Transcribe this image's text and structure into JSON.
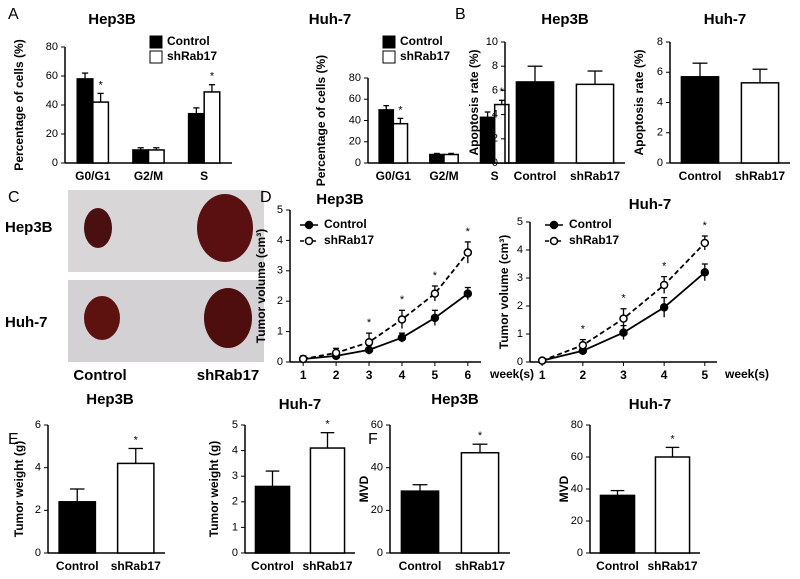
{
  "photo": {
    "panel": "C",
    "rows": [
      "Hep3B",
      "Huh-7"
    ],
    "columns": [
      "Control",
      "shRab17"
    ]
  },
  "chart_data": [
    {
      "type": "bar",
      "panel": "A",
      "title": "Hep3B",
      "ylabel": "Percentage of cells (%)",
      "categories": [
        "G0/G1",
        "G2/M",
        "S"
      ],
      "series": [
        {
          "name": "Control",
          "color": "#000000",
          "values": [
            58,
            9,
            34
          ],
          "errors": [
            4,
            1.5,
            4
          ]
        },
        {
          "name": "shRab17",
          "color": "#ffffff",
          "values": [
            42,
            9,
            49
          ],
          "errors": [
            6,
            1.5,
            5
          ]
        }
      ],
      "ylim": [
        0,
        80
      ],
      "yticks": [
        0,
        20,
        40,
        60,
        80
      ],
      "legend": "upper right",
      "annotations": [
        {
          "text": "*",
          "category": "G0/G1",
          "series": "shRab17"
        },
        {
          "text": "*",
          "category": "S",
          "series": "shRab17"
        }
      ]
    },
    {
      "type": "bar",
      "title": "Huh-7",
      "ylabel": "Percentage of cells (%)",
      "categories": [
        "G0/G1",
        "G2/M",
        "S"
      ],
      "series": [
        {
          "name": "Control",
          "color": "#000000",
          "values": [
            50,
            8,
            43
          ],
          "errors": [
            4,
            1,
            5
          ]
        },
        {
          "name": "shRab17",
          "color": "#ffffff",
          "values": [
            37,
            8,
            55
          ],
          "errors": [
            5,
            1,
            4
          ]
        }
      ],
      "ylim": [
        0,
        80
      ],
      "yticks": [
        0,
        20,
        40,
        60,
        80
      ],
      "legend": "upper right",
      "annotations": [
        {
          "text": "*",
          "category": "G0/G1",
          "series": "shRab17"
        },
        {
          "text": "*",
          "category": "S",
          "series": "shRab17"
        }
      ]
    },
    {
      "type": "bar",
      "panel": "B",
      "title": "Hep3B",
      "ylabel": "Apoptosis rate (%)",
      "categories": [
        "Control",
        "shRab17"
      ],
      "values": [
        6.7,
        6.5
      ],
      "errors": [
        1.3,
        1.1
      ],
      "colors": [
        "#000000",
        "#ffffff"
      ],
      "ylim": [
        0,
        10
      ],
      "yticks": [
        0,
        2,
        4,
        6,
        8,
        10
      ]
    },
    {
      "type": "bar",
      "title": "Huh-7",
      "ylabel": "Apoptosis rate (%)",
      "categories": [
        "Control",
        "shRab17"
      ],
      "values": [
        5.7,
        5.3
      ],
      "errors": [
        0.9,
        0.9
      ],
      "colors": [
        "#000000",
        "#ffffff"
      ],
      "ylim": [
        0,
        8
      ],
      "yticks": [
        0,
        2,
        4,
        6,
        8
      ]
    },
    {
      "type": "line",
      "panel": "D",
      "title": "Hep3B",
      "ylabel": "Tumor volume (cm³)",
      "xlabel": "week(s)",
      "x": [
        1,
        2,
        3,
        4,
        5,
        6
      ],
      "series": [
        {
          "name": "Control",
          "color": "#000000",
          "marker": "filled",
          "dash": false,
          "values": [
            0.1,
            0.2,
            0.4,
            0.8,
            1.45,
            2.25
          ],
          "errors": [
            0.1,
            0.1,
            0.15,
            0.15,
            0.25,
            0.2
          ]
        },
        {
          "name": "shRab17",
          "color": "#000000",
          "marker": "open",
          "dash": true,
          "values": [
            0.1,
            0.3,
            0.65,
            1.4,
            2.25,
            3.6
          ],
          "errors": [
            0.1,
            0.15,
            0.3,
            0.3,
            0.25,
            0.35
          ]
        }
      ],
      "xlim": [
        0.6,
        6.4
      ],
      "xticks": [
        1,
        2,
        3,
        4,
        5,
        6
      ],
      "ylim": [
        0,
        5
      ],
      "yticks": [
        0,
        1,
        2,
        3,
        4,
        5
      ],
      "legend": "upper left",
      "annotations": [
        {
          "text": "*",
          "x": 3
        },
        {
          "text": "*",
          "x": 4
        },
        {
          "text": "*",
          "x": 5
        },
        {
          "text": "*",
          "x": 6
        }
      ]
    },
    {
      "type": "line",
      "title": "Huh-7",
      "ylabel": "Tumor volume (cm³)",
      "xlabel": "week(s)",
      "x": [
        1,
        2,
        3,
        4,
        5
      ],
      "series": [
        {
          "name": "Control",
          "color": "#000000",
          "marker": "filled",
          "dash": false,
          "values": [
            0.05,
            0.4,
            1.05,
            1.95,
            3.2
          ],
          "errors": [
            0.05,
            0.15,
            0.25,
            0.35,
            0.3
          ]
        },
        {
          "name": "shRab17",
          "color": "#000000",
          "marker": "open",
          "dash": true,
          "values": [
            0.05,
            0.6,
            1.55,
            2.75,
            4.25
          ],
          "errors": [
            0.05,
            0.2,
            0.35,
            0.3,
            0.25
          ]
        }
      ],
      "xlim": [
        0.7,
        5.3
      ],
      "xticks": [
        1,
        2,
        3,
        4,
        5
      ],
      "ylim": [
        0,
        5
      ],
      "yticks": [
        0,
        1,
        2,
        3,
        4,
        5
      ],
      "legend": "upper left",
      "annotations": [
        {
          "text": "*",
          "x": 2
        },
        {
          "text": "*",
          "x": 3
        },
        {
          "text": "*",
          "x": 4
        },
        {
          "text": "*",
          "x": 5
        }
      ]
    },
    {
      "type": "bar",
      "panel": "E",
      "title": "Hep3B",
      "ylabel": "Tumor weight (g)",
      "categories": [
        "Control",
        "shRab17"
      ],
      "values": [
        2.4,
        4.2
      ],
      "errors": [
        0.6,
        0.7
      ],
      "colors": [
        "#000000",
        "#ffffff"
      ],
      "ylim": [
        0,
        6
      ],
      "yticks": [
        0,
        2,
        4,
        6
      ],
      "annotations": [
        {
          "text": "*",
          "category": "shRab17"
        }
      ]
    },
    {
      "type": "bar",
      "title": "Huh-7",
      "ylabel": "Tumor weight (g)",
      "categories": [
        "Control",
        "shRab17"
      ],
      "values": [
        2.6,
        4.1
      ],
      "errors": [
        0.6,
        0.6
      ],
      "colors": [
        "#000000",
        "#ffffff"
      ],
      "ylim": [
        0,
        5
      ],
      "yticks": [
        0,
        1,
        2,
        3,
        4,
        5
      ],
      "annotations": [
        {
          "text": "*",
          "category": "shRab17"
        }
      ]
    },
    {
      "type": "bar",
      "panel": "F",
      "title": "Hep3B",
      "ylabel": "MVD",
      "categories": [
        "Control",
        "shRab17"
      ],
      "values": [
        29,
        47
      ],
      "errors": [
        3,
        4
      ],
      "colors": [
        "#000000",
        "#ffffff"
      ],
      "ylim": [
        0,
        60
      ],
      "yticks": [
        0,
        20,
        40,
        60
      ],
      "annotations": [
        {
          "text": "*",
          "category": "shRab17"
        }
      ]
    },
    {
      "type": "bar",
      "title": "Huh-7",
      "ylabel": "MVD",
      "categories": [
        "Control",
        "shRab17"
      ],
      "values": [
        36,
        60
      ],
      "errors": [
        3,
        6
      ],
      "colors": [
        "#000000",
        "#ffffff"
      ],
      "ylim": [
        0,
        80
      ],
      "yticks": [
        0,
        20,
        40,
        60,
        80
      ],
      "annotations": [
        {
          "text": "*",
          "category": "shRab17"
        }
      ]
    }
  ]
}
